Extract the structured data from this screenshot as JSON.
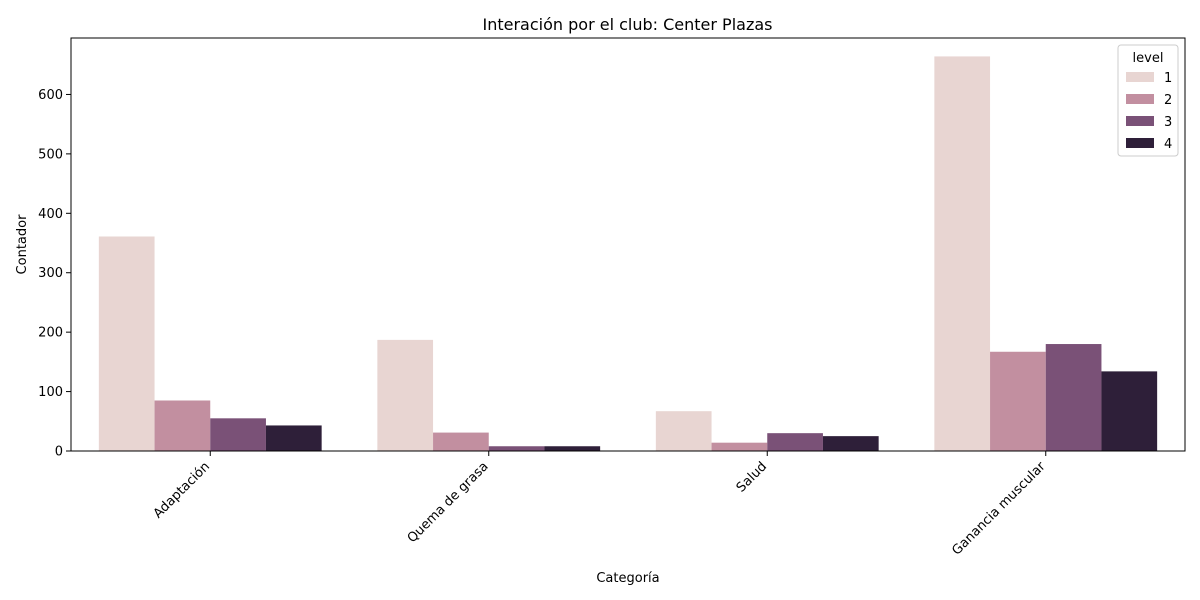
{
  "chart_data": {
    "type": "bar",
    "title": "Interación por el club: Center Plazas",
    "xlabel": "Categoría",
    "ylabel": "Contador",
    "categories": [
      "Adaptación",
      "Quema de grasa",
      "Salud",
      "Ganancia muscular"
    ],
    "series": [
      {
        "name": "1",
        "color": "#e8d5d2",
        "values": [
          361,
          187,
          67,
          664
        ]
      },
      {
        "name": "2",
        "color": "#c28fa0",
        "values": [
          85,
          31,
          14,
          167
        ]
      },
      {
        "name": "3",
        "color": "#7a5177",
        "values": [
          55,
          8,
          30,
          180
        ]
      },
      {
        "name": "4",
        "color": "#2e1f39",
        "values": [
          43,
          8,
          25,
          134
        ]
      }
    ],
    "yticks": [
      0,
      100,
      200,
      300,
      400,
      500,
      600
    ],
    "ylim": [
      0,
      695
    ],
    "legend": {
      "title": "level",
      "position": "top-right"
    },
    "grid": false,
    "xtick_rotation": 45
  }
}
